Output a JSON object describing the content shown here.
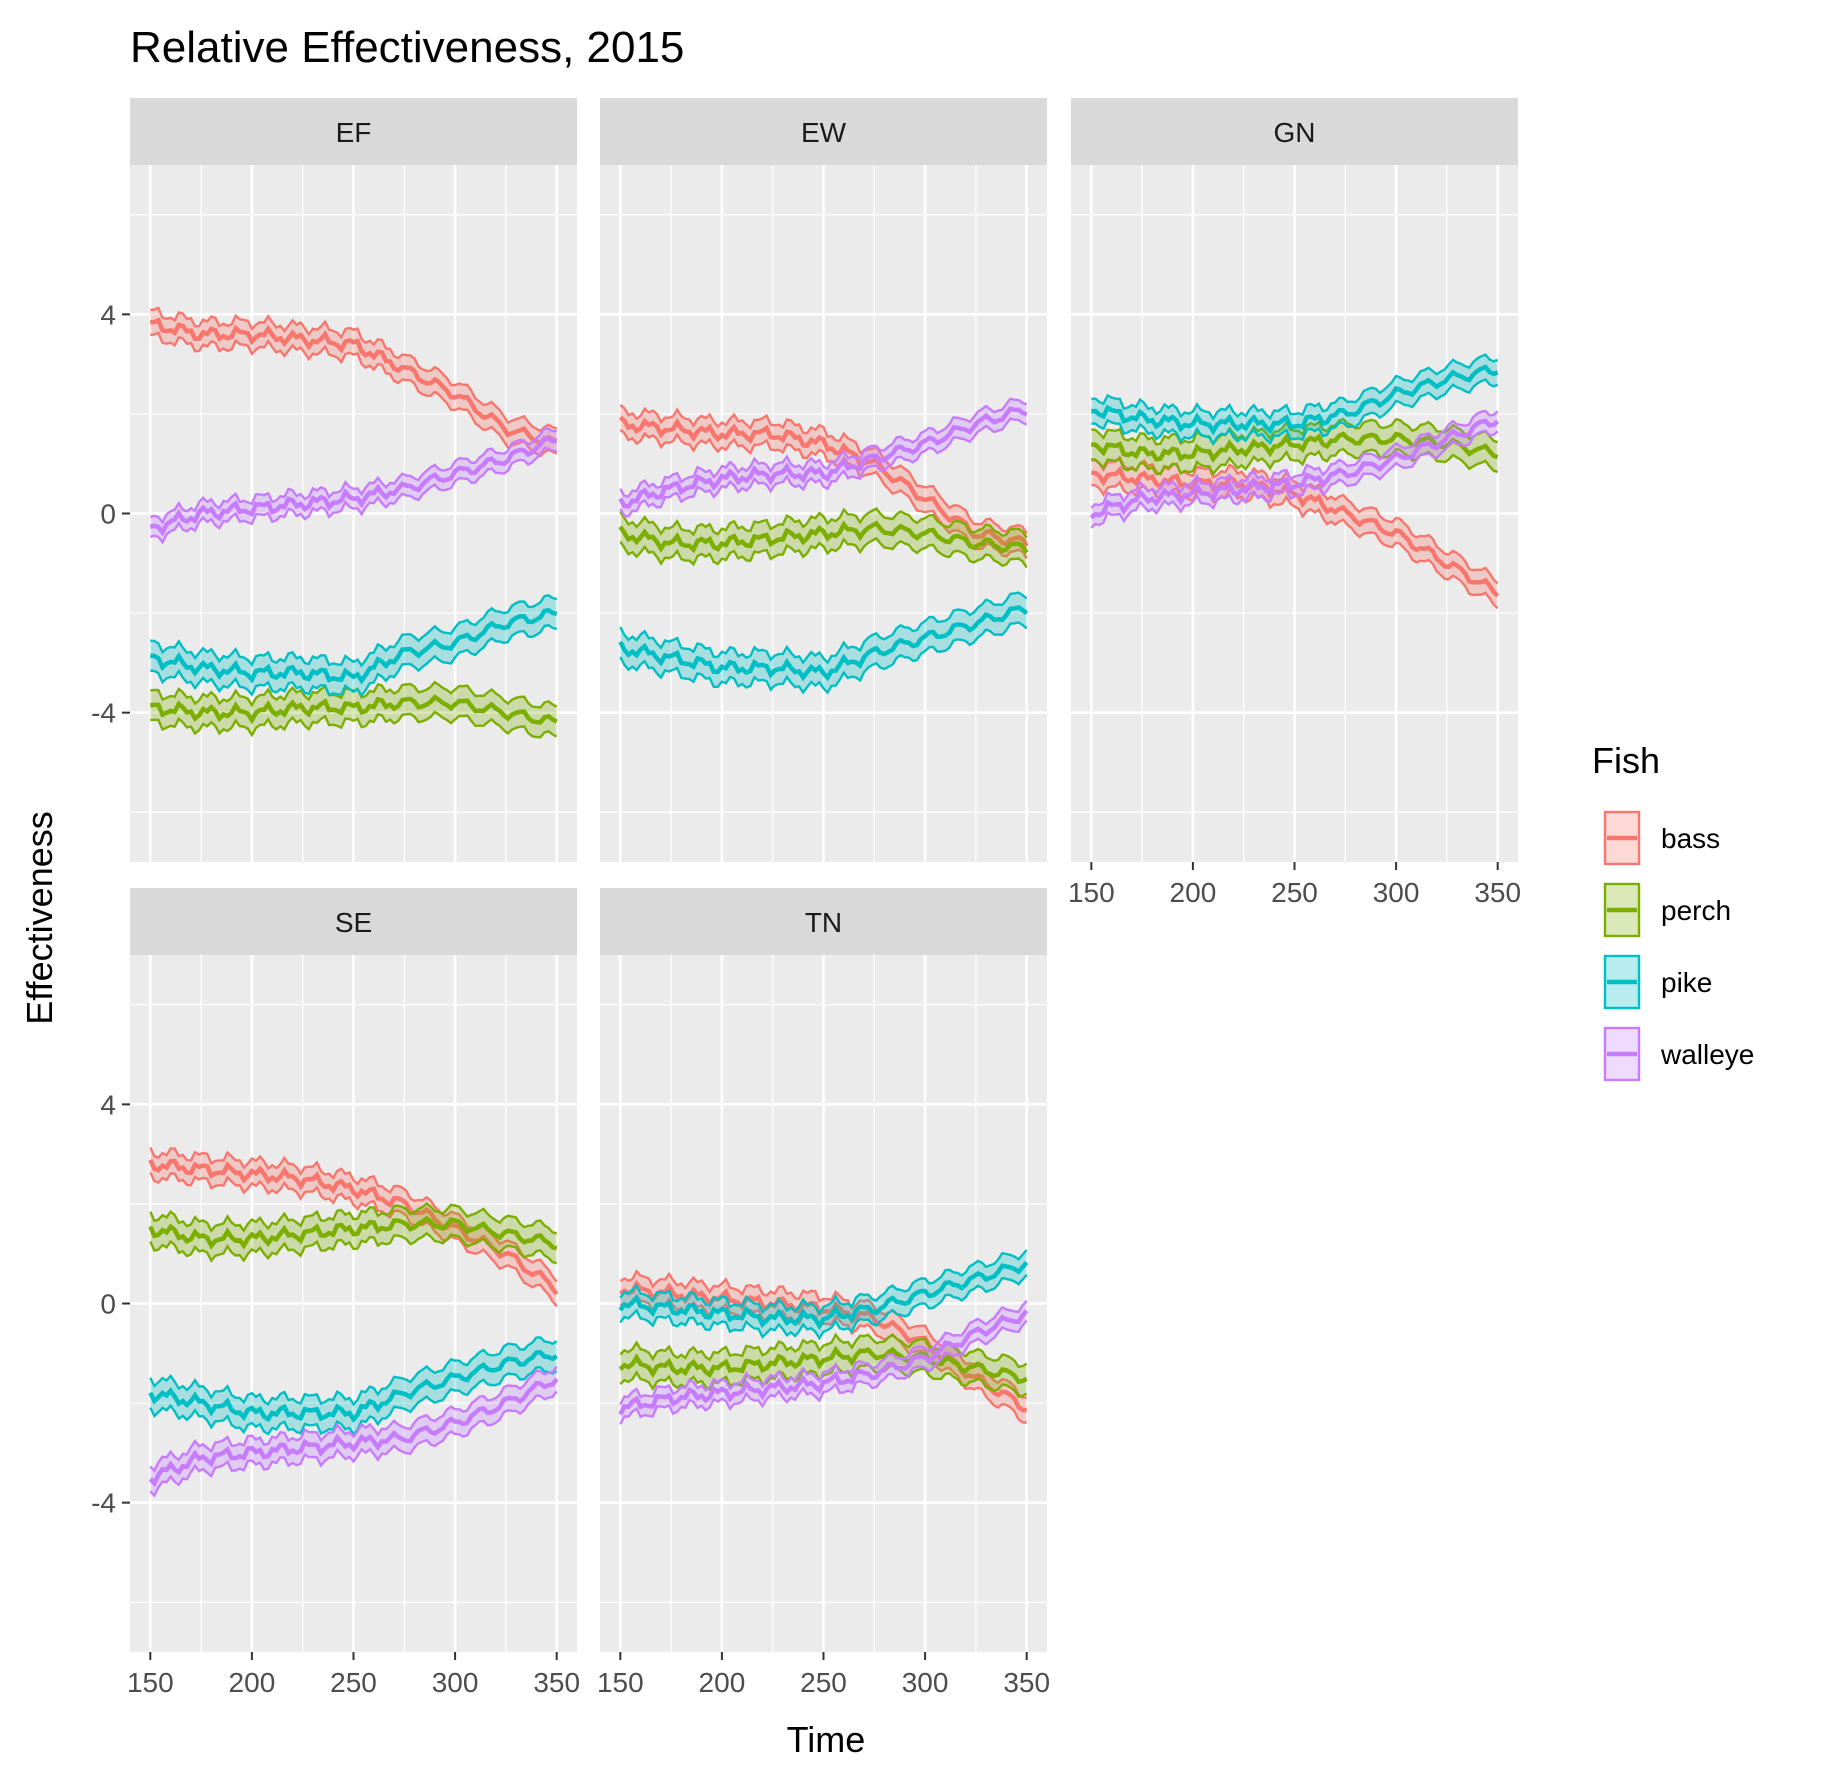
{
  "chart_data": {
    "type": "line",
    "title": "Relative Effectiveness, 2015",
    "xlabel": "Time",
    "ylabel": "Effectiveness",
    "xlim": [
      140,
      360
    ],
    "ylim": [
      -7,
      7
    ],
    "x_ticks": [
      150,
      200,
      250,
      300,
      350
    ],
    "y_ticks": [
      -4,
      0,
      4
    ],
    "grid": true,
    "facet_layout": "3 columns, 2 rows",
    "legend": {
      "title": "Fish",
      "position": "right",
      "entries": [
        "bass",
        "perch",
        "pike",
        "walleye"
      ]
    },
    "colors": {
      "bass": "#F8766D",
      "perch": "#7CAE00",
      "pike": "#00BFC4",
      "walleye": "#C77CFF"
    },
    "x": [
      150,
      175,
      200,
      225,
      250,
      275,
      300,
      325,
      350
    ],
    "panels": [
      {
        "label": "EF",
        "series": [
          {
            "name": "bass",
            "values": [
              3.8,
              3.6,
              3.6,
              3.5,
              3.4,
              2.9,
              2.4,
              1.7,
              1.4
            ],
            "band": 0.25
          },
          {
            "name": "perch",
            "values": [
              -3.9,
              -4.0,
              -4.0,
              -3.9,
              -3.9,
              -3.8,
              -3.8,
              -4.0,
              -4.2
            ],
            "band": 0.3
          },
          {
            "name": "pike",
            "values": [
              -2.9,
              -3.1,
              -3.2,
              -3.2,
              -3.3,
              -2.8,
              -2.6,
              -2.2,
              -2.0
            ],
            "band": 0.3
          },
          {
            "name": "walleye",
            "values": [
              -0.3,
              0.0,
              0.1,
              0.2,
              0.3,
              0.5,
              0.8,
              1.1,
              1.5
            ],
            "band": 0.2
          }
        ]
      },
      {
        "label": "EW",
        "series": [
          {
            "name": "bass",
            "values": [
              1.8,
              1.7,
              1.6,
              1.6,
              1.4,
              1.0,
              0.3,
              -0.4,
              -0.6
            ],
            "band": 0.25
          },
          {
            "name": "perch",
            "values": [
              -0.4,
              -0.6,
              -0.6,
              -0.5,
              -0.4,
              -0.3,
              -0.4,
              -0.6,
              -0.7
            ],
            "band": 0.3
          },
          {
            "name": "pike",
            "values": [
              -2.7,
              -2.9,
              -3.1,
              -3.1,
              -3.2,
              -2.8,
              -2.5,
              -2.2,
              -1.9
            ],
            "band": 0.3
          },
          {
            "name": "walleye",
            "values": [
              0.2,
              0.5,
              0.7,
              0.8,
              0.8,
              1.1,
              1.4,
              1.8,
              2.1
            ],
            "band": 0.2
          }
        ]
      },
      {
        "label": "GN",
        "series": [
          {
            "name": "bass",
            "values": [
              0.8,
              0.7,
              0.6,
              0.6,
              0.4,
              0.0,
              -0.4,
              -1.0,
              -1.6
            ],
            "band": 0.25
          },
          {
            "name": "perch",
            "values": [
              1.4,
              1.2,
              1.2,
              1.3,
              1.4,
              1.5,
              1.5,
              1.4,
              1.2
            ],
            "band": 0.3
          },
          {
            "name": "pike",
            "values": [
              2.1,
              1.9,
              1.8,
              1.8,
              1.8,
              2.0,
              2.4,
              2.7,
              2.9
            ],
            "band": 0.25
          },
          {
            "name": "walleye",
            "values": [
              0.0,
              0.3,
              0.4,
              0.5,
              0.6,
              0.8,
              1.1,
              1.5,
              1.9
            ],
            "band": 0.2
          }
        ]
      },
      {
        "label": "SE",
        "series": [
          {
            "name": "bass",
            "values": [
              2.8,
              2.7,
              2.6,
              2.5,
              2.3,
              2.0,
              1.5,
              1.0,
              0.3
            ],
            "band": 0.25
          },
          {
            "name": "perch",
            "values": [
              1.5,
              1.3,
              1.3,
              1.4,
              1.5,
              1.6,
              1.6,
              1.4,
              1.2
            ],
            "band": 0.3
          },
          {
            "name": "pike",
            "values": [
              -1.8,
              -2.0,
              -2.2,
              -2.2,
              -2.2,
              -1.8,
              -1.5,
              -1.2,
              -1.0
            ],
            "band": 0.3
          },
          {
            "name": "walleye",
            "values": [
              -3.5,
              -3.1,
              -3.0,
              -2.9,
              -2.8,
              -2.7,
              -2.4,
              -2.0,
              -1.5
            ],
            "band": 0.25
          }
        ]
      },
      {
        "label": "TN",
        "series": [
          {
            "name": "bass",
            "values": [
              0.3,
              0.2,
              0.1,
              0.0,
              -0.1,
              -0.3,
              -0.8,
              -1.5,
              -2.1
            ],
            "band": 0.25
          },
          {
            "name": "perch",
            "values": [
              -1.2,
              -1.3,
              -1.3,
              -1.2,
              -1.1,
              -1.0,
              -1.1,
              -1.3,
              -1.5
            ],
            "band": 0.3
          },
          {
            "name": "pike",
            "values": [
              0.0,
              -0.1,
              -0.2,
              -0.3,
              -0.3,
              -0.1,
              0.2,
              0.5,
              0.8
            ],
            "band": 0.25
          },
          {
            "name": "walleye",
            "values": [
              -2.1,
              -1.9,
              -1.8,
              -1.7,
              -1.6,
              -1.4,
              -1.1,
              -0.6,
              -0.2
            ],
            "band": 0.2
          }
        ]
      }
    ]
  }
}
